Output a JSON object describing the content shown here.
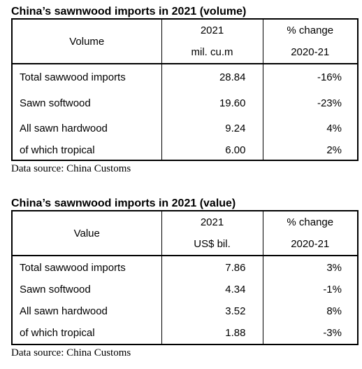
{
  "tables": [
    {
      "title": "China’s sawnwood imports in 2021 (volume)",
      "header": {
        "col0": "Volume",
        "col1_top": "2021",
        "col1_bottom": "mil. cu.m",
        "col2_top": "% change",
        "col2_bottom": "2020-21"
      },
      "rows": [
        {
          "label": "Total sawwood imports",
          "value": "28.84",
          "change": "-16%"
        },
        {
          "label": "Sawn softwood",
          "value": "19.60",
          "change": "-23%"
        },
        {
          "label": "All sawn hardwood",
          "value": "9.24",
          "change": "4%"
        },
        {
          "label": "of which tropical",
          "value": "6.00",
          "change": "2%"
        }
      ],
      "source": "Data source: China Customs"
    },
    {
      "title": "China’s sawnwood imports in 2021 (value)",
      "header": {
        "col0": "Value",
        "col1_top": "2021",
        "col1_bottom": "US$ bil.",
        "col2_top": "% change",
        "col2_bottom": "2020-21"
      },
      "rows": [
        {
          "label": "Total sawwood imports",
          "value": "7.86",
          "change": "3%"
        },
        {
          "label": "Sawn softwood",
          "value": "4.34",
          "change": "-1%"
        },
        {
          "label": "All sawn hardwood",
          "value": "3.52",
          "change": "8%"
        },
        {
          "label": "of which tropical",
          "value": "1.88",
          "change": "-3%"
        }
      ],
      "source": "Data source: China Customs"
    }
  ]
}
